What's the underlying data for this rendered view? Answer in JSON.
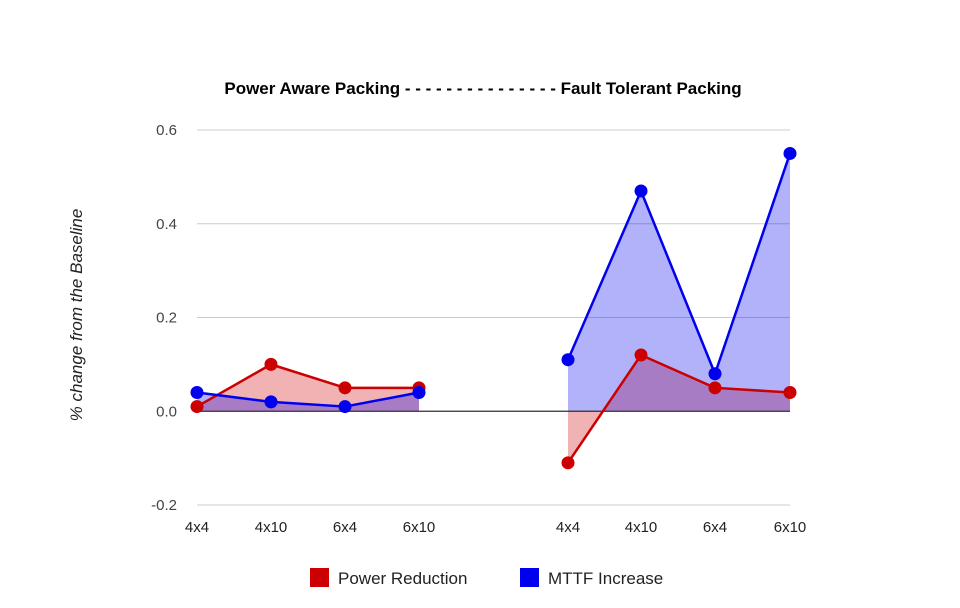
{
  "chart_data": {
    "type": "area",
    "title": "Power Aware Packing - - - - - - - - - - - - - - - Fault Tolerant Packing",
    "ylabel": "% change from the Baseline",
    "xlabel": "",
    "ylim": [
      -0.2,
      0.6
    ],
    "yticks": [
      "-0.2",
      "0.0",
      "0.2",
      "0.4",
      "0.6"
    ],
    "grid": true,
    "legend_position": "bottom",
    "groups": [
      {
        "categories": [
          "4x4",
          "4x10",
          "6x4",
          "6x10"
        ],
        "series": [
          {
            "name": "Power Reduction",
            "values": [
              0.01,
              0.1,
              0.05,
              0.05
            ]
          },
          {
            "name": "MTTF Increase",
            "values": [
              0.04,
              0.02,
              0.01,
              0.04
            ]
          }
        ]
      },
      {
        "categories": [
          "4x4",
          "4x10",
          "6x4",
          "6x10"
        ],
        "series": [
          {
            "name": "Power Reduction",
            "values": [
              -0.11,
              0.12,
              0.05,
              0.04
            ]
          },
          {
            "name": "MTTF Increase",
            "values": [
              0.11,
              0.47,
              0.08,
              0.55
            ]
          }
        ]
      }
    ],
    "series_colors": {
      "Power Reduction": "#cc0000",
      "MTTF Increase": "#0000ee"
    },
    "legend": [
      "Power Reduction",
      "MTTF Increase"
    ]
  }
}
